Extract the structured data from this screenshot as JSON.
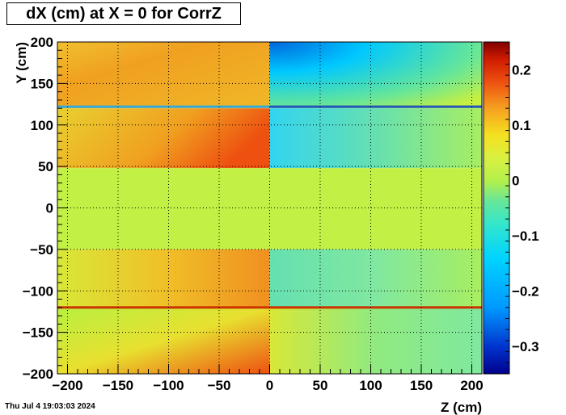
{
  "title": "dX (cm) at X = 0 for CorrZ",
  "footer": "Thu Jul  4 19:03:03 2024",
  "chart_data": {
    "type": "heatmap",
    "title": "dX (cm) at X = 0 for CorrZ",
    "xlabel": "Z (cm)",
    "ylabel": "Y (cm)",
    "xlim": [
      -210,
      210
    ],
    "ylim": [
      -200,
      200
    ],
    "zlim": [
      -0.35,
      0.25
    ],
    "x_ticks": [
      -200,
      -150,
      -100,
      -50,
      0,
      50,
      100,
      150,
      200
    ],
    "y_ticks": [
      -200,
      -150,
      -100,
      -50,
      0,
      50,
      100,
      150,
      200
    ],
    "z_ticks": [
      -0.3,
      -0.2,
      -0.1,
      0,
      0.1,
      0.2
    ],
    "x_tick_labels": [
      "−200",
      "−150",
      "−100",
      "−50",
      "0",
      "50",
      "100",
      "150",
      "200"
    ],
    "y_tick_labels": [
      "−200",
      "−150",
      "−100",
      "−50",
      "0",
      "50",
      "100",
      "150",
      "200"
    ],
    "z_tick_labels": [
      "−0.3",
      "−0.2",
      "−0.1",
      "0",
      "0.1",
      "0.2"
    ],
    "grid": true,
    "colormap": [
      "#00008b",
      "#0033cc",
      "#0099ff",
      "#00d4ff",
      "#33e6cc",
      "#66e699",
      "#b3f04d",
      "#d9f040",
      "#f5e020",
      "#f5a020",
      "#ee5010",
      "#cc1a00",
      "#800000"
    ],
    "regions": [
      {
        "z": [
          -210,
          0
        ],
        "y": [
          120,
          200
        ],
        "dx": 0.12,
        "note": "top-left"
      },
      {
        "z": [
          -210,
          0
        ],
        "y": [
          48,
          120
        ],
        "dx": 0.13
      },
      {
        "z": [
          0,
          210
        ],
        "y": [
          120,
          200
        ],
        "dx": -0.08
      },
      {
        "z": [
          0,
          210
        ],
        "y": [
          48,
          120
        ],
        "dx": -0.06
      },
      {
        "z": [
          -210,
          210
        ],
        "y": [
          -50,
          48
        ],
        "dx": 0.0
      },
      {
        "z": [
          -210,
          0
        ],
        "y": [
          -120,
          -50
        ],
        "dx": 0.09
      },
      {
        "z": [
          -210,
          0
        ],
        "y": [
          -200,
          -120
        ],
        "dx": 0.07
      },
      {
        "z": [
          0,
          210
        ],
        "y": [
          -120,
          -50
        ],
        "dx": -0.04
      },
      {
        "z": [
          0,
          210
        ],
        "y": [
          -200,
          -120
        ],
        "dx": -0.02
      }
    ],
    "stripes": [
      {
        "y": 122,
        "z": [
          -210,
          0
        ],
        "dx": -0.15
      },
      {
        "y": 122,
        "z": [
          0,
          210
        ],
        "dx": -0.25
      },
      {
        "y": -120,
        "z": [
          -210,
          210
        ],
        "dx": 0.22
      }
    ]
  }
}
